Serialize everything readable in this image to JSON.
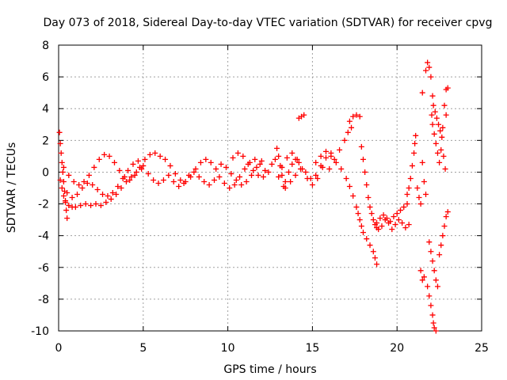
{
  "chart_data": {
    "type": "scatter",
    "title": "Day 073 of 2018, Sidereal Day-to-day VTEC variation (SDTVAR) for receiver cpvg",
    "xlabel": "GPS time / hours",
    "ylabel": "SDTVAR / TECUs",
    "xlim": [
      0,
      25
    ],
    "ylim": [
      -10,
      8
    ],
    "xticks": [
      "0",
      "5",
      "10",
      "15",
      "20",
      "25"
    ],
    "yticks": [
      "-10",
      "-8",
      "-6",
      "-4",
      "-2",
      "0",
      "2",
      "4",
      "6",
      "8"
    ],
    "grid": true,
    "marker": "+",
    "series": [
      {
        "name": "SDTVAR",
        "color": "#ff0000",
        "points": [
          [
            0.05,
            2.5
          ],
          [
            0.1,
            1.8
          ],
          [
            0.15,
            1.2
          ],
          [
            0.2,
            0.6
          ],
          [
            0.25,
            0.0
          ],
          [
            0.3,
            -0.6
          ],
          [
            0.35,
            -1.2
          ],
          [
            0.4,
            -1.8
          ],
          [
            0.45,
            -2.4
          ],
          [
            0.5,
            -2.9
          ],
          [
            0.1,
            -0.5
          ],
          [
            0.2,
            -1.0
          ],
          [
            0.3,
            -1.5
          ],
          [
            0.4,
            -1.9
          ],
          [
            0.6,
            -2.1
          ],
          [
            0.8,
            -2.2
          ],
          [
            1.0,
            -2.2
          ],
          [
            1.3,
            -2.1
          ],
          [
            1.6,
            -2.0
          ],
          [
            1.9,
            -2.1
          ],
          [
            2.2,
            -2.0
          ],
          [
            2.5,
            -2.1
          ],
          [
            2.8,
            -1.9
          ],
          [
            3.1,
            -1.7
          ],
          [
            3.4,
            -1.4
          ],
          [
            3.7,
            -1.0
          ],
          [
            4.0,
            -0.6
          ],
          [
            4.3,
            -0.3
          ],
          [
            4.6,
            0.0
          ],
          [
            4.9,
            0.2
          ],
          [
            0.3,
            0.3
          ],
          [
            0.6,
            -0.2
          ],
          [
            0.9,
            -0.6
          ],
          [
            1.2,
            -0.8
          ],
          [
            1.5,
            -0.6
          ],
          [
            1.8,
            -0.2
          ],
          [
            2.1,
            0.3
          ],
          [
            2.4,
            0.8
          ],
          [
            2.7,
            1.1
          ],
          [
            3.0,
            1.0
          ],
          [
            3.3,
            0.6
          ],
          [
            3.6,
            0.1
          ],
          [
            3.9,
            -0.3
          ],
          [
            4.2,
            -0.5
          ],
          [
            4.5,
            -0.2
          ],
          [
            4.8,
            0.3
          ],
          [
            5.1,
            0.8
          ],
          [
            5.4,
            1.1
          ],
          [
            5.7,
            1.2
          ],
          [
            6.0,
            1.0
          ],
          [
            0.5,
            -1.3
          ],
          [
            0.8,
            -1.6
          ],
          [
            1.1,
            -1.4
          ],
          [
            1.4,
            -1.0
          ],
          [
            1.7,
            -0.7
          ],
          [
            2.0,
            -0.8
          ],
          [
            2.3,
            -1.1
          ],
          [
            2.6,
            -1.4
          ],
          [
            2.9,
            -1.5
          ],
          [
            3.2,
            -1.3
          ],
          [
            3.5,
            -0.9
          ],
          [
            3.8,
            -0.4
          ],
          [
            4.1,
            0.1
          ],
          [
            4.4,
            0.5
          ],
          [
            4.7,
            0.7
          ],
          [
            5.0,
            0.4
          ],
          [
            5.3,
            -0.1
          ],
          [
            5.6,
            -0.5
          ],
          [
            5.9,
            -0.7
          ],
          [
            6.2,
            -0.5
          ],
          [
            6.3,
            0.8
          ],
          [
            6.6,
            0.4
          ],
          [
            6.9,
            -0.1
          ],
          [
            7.2,
            -0.5
          ],
          [
            7.5,
            -0.6
          ],
          [
            7.8,
            -0.3
          ],
          [
            8.1,
            0.2
          ],
          [
            8.4,
            0.6
          ],
          [
            8.7,
            0.8
          ],
          [
            9.0,
            0.6
          ],
          [
            6.5,
            -0.2
          ],
          [
            6.8,
            -0.6
          ],
          [
            7.1,
            -0.9
          ],
          [
            7.4,
            -0.7
          ],
          [
            7.7,
            -0.2
          ],
          [
            8.0,
            0.0
          ],
          [
            8.3,
            -0.3
          ],
          [
            8.6,
            -0.6
          ],
          [
            8.9,
            -0.8
          ],
          [
            9.2,
            -0.5
          ],
          [
            9.3,
            0.2
          ],
          [
            9.6,
            0.5
          ],
          [
            9.9,
            0.3
          ],
          [
            10.2,
            -0.1
          ],
          [
            10.5,
            -0.5
          ],
          [
            10.8,
            -0.8
          ],
          [
            11.1,
            -0.6
          ],
          [
            11.4,
            -0.2
          ],
          [
            11.7,
            0.3
          ],
          [
            12.0,
            0.7
          ],
          [
            9.5,
            -0.3
          ],
          [
            9.8,
            -0.7
          ],
          [
            10.1,
            -1.0
          ],
          [
            10.4,
            -0.8
          ],
          [
            10.7,
            -0.3
          ],
          [
            11.0,
            0.2
          ],
          [
            11.3,
            0.6
          ],
          [
            11.6,
            0.8
          ],
          [
            11.9,
            0.5
          ],
          [
            12.2,
            0.1
          ],
          [
            10.3,
            0.9
          ],
          [
            10.6,
            1.2
          ],
          [
            10.9,
            1.0
          ],
          [
            11.2,
            0.5
          ],
          [
            11.5,
            0.1
          ],
          [
            11.8,
            -0.2
          ],
          [
            12.1,
            -0.3
          ],
          [
            12.4,
            0.0
          ],
          [
            12.6,
            0.5
          ],
          [
            12.8,
            0.8
          ],
          [
            12.9,
            1.5
          ],
          [
            13.0,
            1.0
          ],
          [
            13.1,
            0.4
          ],
          [
            13.2,
            -0.2
          ],
          [
            13.3,
            -0.9
          ],
          [
            13.4,
            -0.6
          ],
          [
            13.6,
            0.0
          ],
          [
            13.8,
            0.5
          ],
          [
            14.0,
            0.8
          ],
          [
            14.2,
            0.6
          ],
          [
            13.0,
            -0.3
          ],
          [
            13.2,
            0.3
          ],
          [
            13.5,
            0.9
          ],
          [
            13.8,
            1.2
          ],
          [
            14.1,
            0.8
          ],
          [
            14.4,
            0.2
          ],
          [
            14.7,
            -0.4
          ],
          [
            15.0,
            -0.8
          ],
          [
            15.3,
            -0.4
          ],
          [
            15.6,
            0.3
          ],
          [
            13.4,
            -1.0
          ],
          [
            13.7,
            -0.6
          ],
          [
            14.0,
            -0.2
          ],
          [
            14.3,
            0.2
          ],
          [
            14.6,
            0.0
          ],
          [
            14.9,
            -0.4
          ],
          [
            15.2,
            -0.2
          ],
          [
            15.5,
            0.4
          ],
          [
            15.8,
            0.9
          ],
          [
            16.1,
            1.2
          ],
          [
            14.2,
            3.4
          ],
          [
            14.35,
            3.5
          ],
          [
            14.5,
            3.6
          ],
          [
            15.2,
            0.6
          ],
          [
            15.5,
            1.0
          ],
          [
            15.8,
            1.3
          ],
          [
            16.1,
            1.0
          ],
          [
            16.4,
            0.6
          ],
          [
            16.7,
            0.2
          ],
          [
            17.0,
            -0.4
          ],
          [
            17.2,
            -0.9
          ],
          [
            17.4,
            -1.5
          ],
          [
            17.6,
            -2.2
          ],
          [
            16.0,
            0.2
          ],
          [
            16.3,
            0.8
          ],
          [
            16.6,
            1.4
          ],
          [
            16.9,
            2.0
          ],
          [
            17.1,
            2.5
          ],
          [
            17.2,
            3.2
          ],
          [
            17.4,
            3.5
          ],
          [
            17.6,
            3.6
          ],
          [
            17.8,
            3.5
          ],
          [
            17.3,
            2.8
          ],
          [
            17.9,
            1.6
          ],
          [
            18.0,
            0.8
          ],
          [
            18.1,
            0.0
          ],
          [
            18.2,
            -0.8
          ],
          [
            18.3,
            -1.6
          ],
          [
            18.4,
            -2.2
          ],
          [
            18.5,
            -2.6
          ],
          [
            18.6,
            -3.0
          ],
          [
            18.7,
            -3.3
          ],
          [
            18.8,
            -3.5
          ],
          [
            17.7,
            -2.6
          ],
          [
            17.8,
            -3.0
          ],
          [
            17.9,
            -3.4
          ],
          [
            18.0,
            -3.8
          ],
          [
            18.2,
            -4.2
          ],
          [
            18.4,
            -4.6
          ],
          [
            18.6,
            -5.0
          ],
          [
            18.7,
            -5.4
          ],
          [
            18.8,
            -5.8
          ],
          [
            18.9,
            -3.6
          ],
          [
            19.1,
            -3.4
          ],
          [
            19.3,
            -3.0
          ],
          [
            19.5,
            -3.2
          ],
          [
            19.7,
            -3.6
          ],
          [
            19.9,
            -3.3
          ],
          [
            20.1,
            -3.0
          ],
          [
            20.3,
            -3.2
          ],
          [
            20.5,
            -3.5
          ],
          [
            20.7,
            -3.3
          ],
          [
            18.8,
            -3.2
          ],
          [
            19.0,
            -2.9
          ],
          [
            19.2,
            -2.7
          ],
          [
            19.4,
            -2.9
          ],
          [
            19.6,
            -3.1
          ],
          [
            19.8,
            -2.8
          ],
          [
            20.0,
            -2.6
          ],
          [
            20.2,
            -2.4
          ],
          [
            20.4,
            -2.2
          ],
          [
            20.6,
            -2.0
          ],
          [
            20.6,
            -1.4
          ],
          [
            20.7,
            -1.0
          ],
          [
            20.8,
            -0.4
          ],
          [
            20.9,
            0.4
          ],
          [
            21.0,
            1.2
          ],
          [
            21.05,
            1.8
          ],
          [
            21.1,
            2.3
          ],
          [
            21.2,
            -1.0
          ],
          [
            21.3,
            -1.6
          ],
          [
            21.4,
            -2.0
          ],
          [
            21.5,
            0.6
          ],
          [
            21.6,
            -0.6
          ],
          [
            21.7,
            -1.4
          ],
          [
            21.7,
            6.4
          ],
          [
            21.8,
            6.9
          ],
          [
            21.9,
            6.6
          ],
          [
            22.0,
            6.0
          ],
          [
            22.1,
            4.8
          ],
          [
            21.5,
            5.0
          ],
          [
            22.05,
            3.6
          ],
          [
            22.1,
            3.0
          ],
          [
            22.2,
            2.4
          ],
          [
            22.3,
            1.8
          ],
          [
            22.4,
            1.2
          ],
          [
            22.5,
            0.6
          ],
          [
            22.6,
            1.4
          ],
          [
            22.7,
            2.8
          ],
          [
            22.8,
            4.2
          ],
          [
            22.9,
            5.2
          ],
          [
            22.15,
            4.2
          ],
          [
            22.25,
            3.8
          ],
          [
            22.35,
            3.4
          ],
          [
            22.45,
            3.0
          ],
          [
            22.55,
            2.6
          ],
          [
            22.65,
            2.2
          ],
          [
            22.75,
            1.0
          ],
          [
            22.85,
            0.2
          ],
          [
            22.9,
            3.6
          ],
          [
            23.0,
            5.3
          ],
          [
            21.9,
            -4.4
          ],
          [
            22.0,
            -5.0
          ],
          [
            22.1,
            -5.6
          ],
          [
            22.2,
            -6.2
          ],
          [
            22.3,
            -6.8
          ],
          [
            22.4,
            -7.2
          ],
          [
            22.5,
            -5.2
          ],
          [
            22.6,
            -4.6
          ],
          [
            22.7,
            -4.0
          ],
          [
            22.8,
            -3.4
          ],
          [
            22.9,
            -2.8
          ],
          [
            23.0,
            -2.5
          ],
          [
            21.6,
            -6.6
          ],
          [
            21.8,
            -7.2
          ],
          [
            21.9,
            -7.8
          ],
          [
            22.0,
            -8.4
          ],
          [
            22.1,
            -9.0
          ],
          [
            22.15,
            -9.5
          ],
          [
            22.2,
            -9.8
          ],
          [
            22.3,
            -10.0
          ],
          [
            21.4,
            -6.2
          ],
          [
            21.5,
            -6.8
          ]
        ]
      }
    ]
  }
}
